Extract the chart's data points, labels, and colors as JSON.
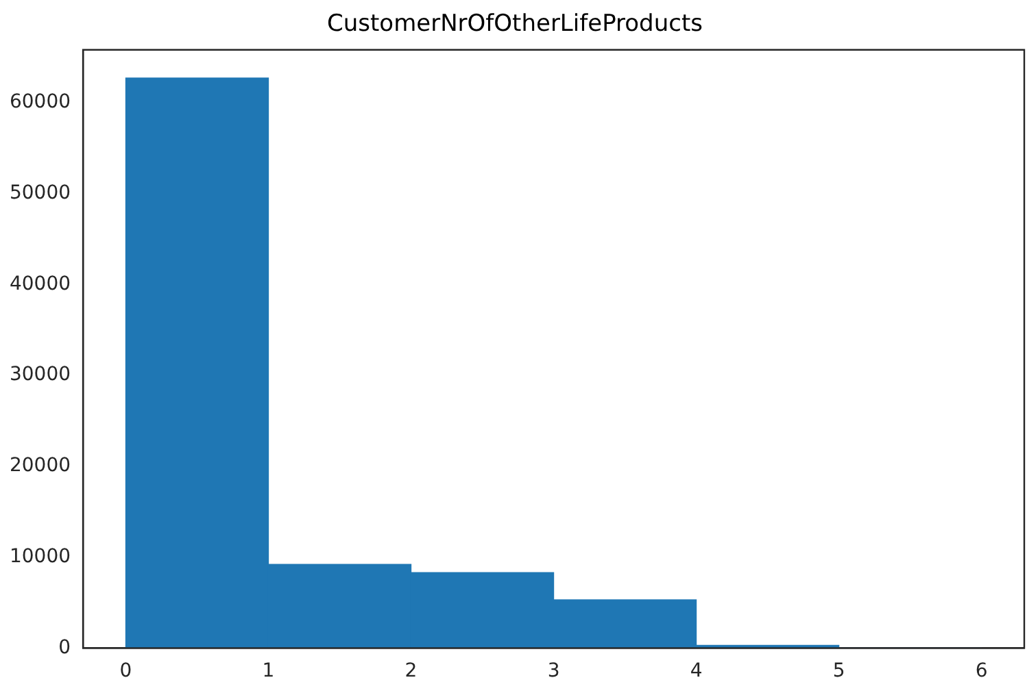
{
  "chart_data": {
    "type": "histogram",
    "title": "CustomerNrOfOtherLifeProducts",
    "bins": [
      0,
      1,
      2,
      3,
      4,
      5,
      6
    ],
    "values": [
      62700,
      9200,
      8300,
      5300,
      300,
      0
    ],
    "color": "#1f77b4",
    "xlim": [
      -0.3,
      6.3
    ],
    "xticks": [
      0,
      1,
      2,
      3,
      4,
      5,
      6
    ],
    "ylim": [
      0,
      65800
    ],
    "yticks": [
      0,
      10000,
      20000,
      30000,
      40000,
      50000,
      60000
    ],
    "grid": false,
    "legend": false
  }
}
